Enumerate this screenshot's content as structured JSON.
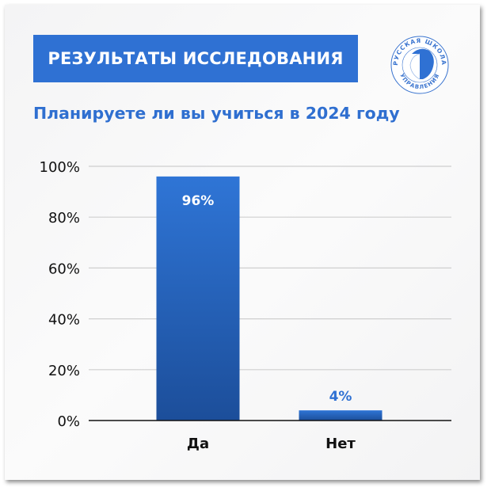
{
  "header": {
    "banner": "РЕЗУЛЬТАТЫ ИССЛЕДОВАНИЯ",
    "logo_text_top": "РУССКАЯ ШКОЛА",
    "logo_text_bottom": "УПРАВЛЕНИЯ"
  },
  "colors": {
    "accent": "#2f71d3",
    "bar_top": "#2f75d6",
    "bar_bottom": "#1c4e9a"
  },
  "chart_data": {
    "type": "bar",
    "title": "Планируете ли вы учиться в 2024 году",
    "categories": [
      "Да",
      "Нет"
    ],
    "values": [
      96,
      4
    ],
    "data_labels": [
      "96%",
      "4%"
    ],
    "ylim": [
      0,
      100
    ],
    "yticks": [
      "0%",
      "20%",
      "40%",
      "60%",
      "80%",
      "100%"
    ],
    "grid": true
  }
}
